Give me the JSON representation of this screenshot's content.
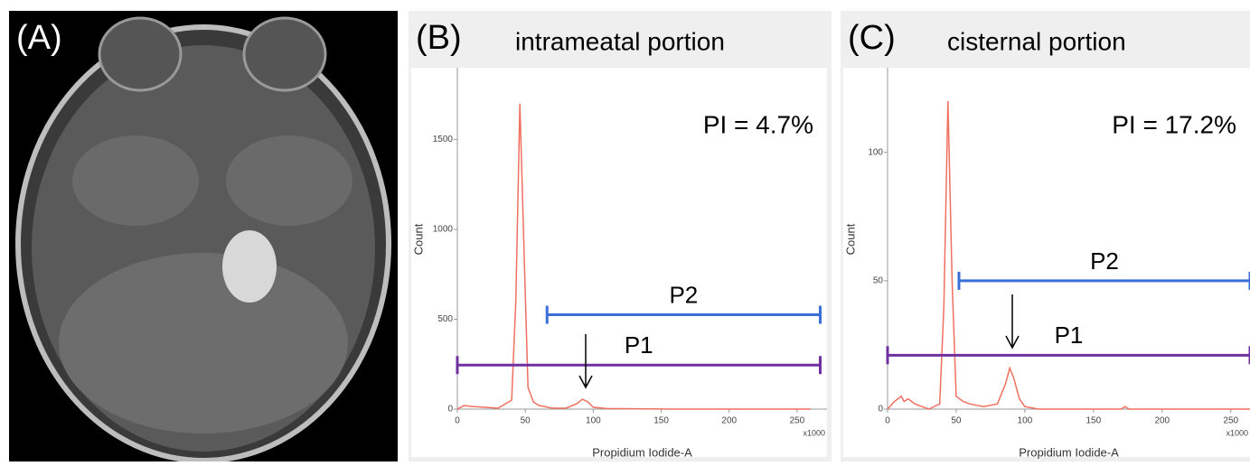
{
  "panel_a_label": "(A)",
  "chart_data": [
    {
      "type": "line",
      "panel_label": "(B)",
      "title": "intrameatal portion",
      "annotation": "PI = 4.7%",
      "x_label": "Propidium Iodide-A",
      "x_multiplier": "x1000",
      "y_label": "Count",
      "xlim": [
        0,
        272
      ],
      "xticks": [
        0,
        50,
        100,
        150,
        200,
        250
      ],
      "ylim": [
        0,
        1900
      ],
      "yticks": [
        0,
        500,
        1000,
        1500
      ],
      "color": "#f07060",
      "x": [
        0,
        5,
        10,
        20,
        30,
        40,
        43,
        46,
        49,
        52,
        56,
        60,
        70,
        80,
        88,
        92,
        96,
        100,
        110,
        130,
        160,
        200,
        250,
        260
      ],
      "values": [
        0,
        20,
        15,
        10,
        5,
        50,
        600,
        1700,
        900,
        120,
        40,
        20,
        5,
        5,
        30,
        55,
        40,
        10,
        3,
        2,
        0,
        0,
        0,
        0
      ],
      "gates": [
        {
          "name": "P2",
          "start": 66,
          "end": 267,
          "level": 525,
          "color": "#3a6fd8"
        },
        {
          "name": "P1",
          "start": 0,
          "end": 267,
          "level": 245,
          "color": "#7030a0"
        }
      ]
    },
    {
      "type": "line",
      "panel_label": "(C)",
      "title": "cisternal portion",
      "annotation": "PI = 17.2%",
      "x_label": "Propidium Iodide-A",
      "x_multiplier": "x1000",
      "y_label": "Count",
      "xlim": [
        0,
        264
      ],
      "xticks": [
        0,
        50,
        100,
        150,
        200,
        250
      ],
      "ylim": [
        0,
        133
      ],
      "yticks": [
        0,
        50,
        100
      ],
      "color": "#f07060",
      "x": [
        0,
        5,
        10,
        12,
        15,
        20,
        25,
        30,
        38,
        41,
        44,
        47,
        50,
        55,
        60,
        70,
        80,
        86,
        89,
        92,
        96,
        100,
        110,
        130,
        170,
        173,
        176,
        200,
        264
      ],
      "values": [
        0,
        3,
        5,
        3,
        4,
        2,
        1,
        0,
        2,
        40,
        120,
        50,
        5,
        3,
        2,
        1,
        2,
        10,
        16,
        12,
        4,
        1,
        0,
        0,
        0,
        1,
        0,
        0,
        0
      ],
      "gates": [
        {
          "name": "P2",
          "start": 52,
          "end": 264,
          "level": 50,
          "color": "#3a6fd8"
        },
        {
          "name": "P1",
          "start": 0,
          "end": 264,
          "level": 21,
          "color": "#7030a0"
        }
      ]
    }
  ]
}
